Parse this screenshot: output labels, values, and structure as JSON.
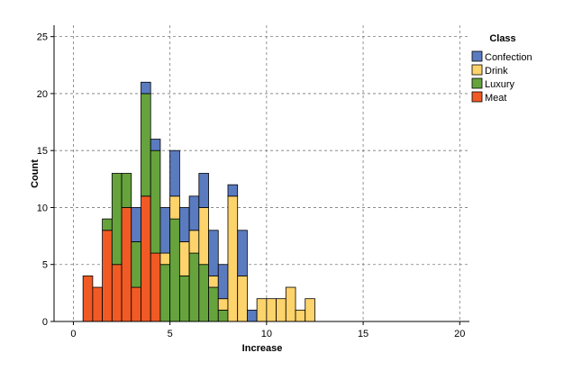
{
  "chart_data": {
    "type": "bar",
    "stacked": true,
    "bin_width": 0.5,
    "xlabel": "Increase",
    "ylabel": "Count",
    "xlim": [
      -1,
      20.5
    ],
    "ylim": [
      0,
      26
    ],
    "x_ticks": [
      0,
      5,
      10,
      15,
      20
    ],
    "y_ticks": [
      0,
      5,
      10,
      15,
      20,
      25
    ],
    "grid": true,
    "legend_title": "Class",
    "legend_position": "top-right",
    "bin_starts": [
      0.5,
      1.0,
      1.5,
      2.0,
      2.5,
      3.0,
      3.5,
      4.0,
      4.5,
      5.0,
      5.5,
      6.0,
      6.5,
      7.0,
      7.5,
      8.0,
      8.5,
      9.0,
      9.5,
      10.0,
      10.5,
      11.0,
      11.5,
      12.0,
      12.5,
      13.0,
      13.5,
      14.0,
      14.5,
      15.0
    ],
    "series": [
      {
        "name": "Meat",
        "color": "#f15a24",
        "values": [
          4,
          3,
          8,
          5,
          10,
          3,
          11,
          6,
          0,
          0,
          0,
          0,
          0,
          0,
          0,
          0,
          0,
          0,
          0,
          0,
          0,
          0,
          0,
          0,
          0,
          0,
          0,
          0,
          0,
          0
        ]
      },
      {
        "name": "Luxury",
        "color": "#66a33d",
        "values": [
          0,
          0,
          1,
          8,
          3,
          4,
          9,
          9,
          5,
          9,
          4,
          6,
          5,
          3,
          1,
          0,
          0,
          0,
          0,
          0,
          0,
          0,
          0,
          0,
          0,
          0,
          0,
          0,
          0,
          0
        ]
      },
      {
        "name": "Drink",
        "color": "#fdd36b",
        "values": [
          0,
          0,
          0,
          0,
          0,
          0,
          0,
          0,
          1,
          2,
          3,
          2,
          5,
          1,
          1,
          11,
          4,
          0,
          2,
          2,
          2,
          3,
          1,
          2,
          0,
          0,
          0,
          0,
          0,
          0
        ]
      },
      {
        "name": "Confection",
        "color": "#5a7bbf",
        "values": [
          0,
          0,
          0,
          0,
          0,
          3,
          1,
          1,
          4,
          4,
          3,
          3,
          3,
          4,
          3,
          1,
          4,
          1,
          0,
          0,
          0,
          0,
          0,
          0,
          0,
          0,
          0,
          0,
          0,
          0
        ]
      }
    ],
    "legend_order": [
      "Confection",
      "Drink",
      "Luxury",
      "Meat"
    ]
  }
}
